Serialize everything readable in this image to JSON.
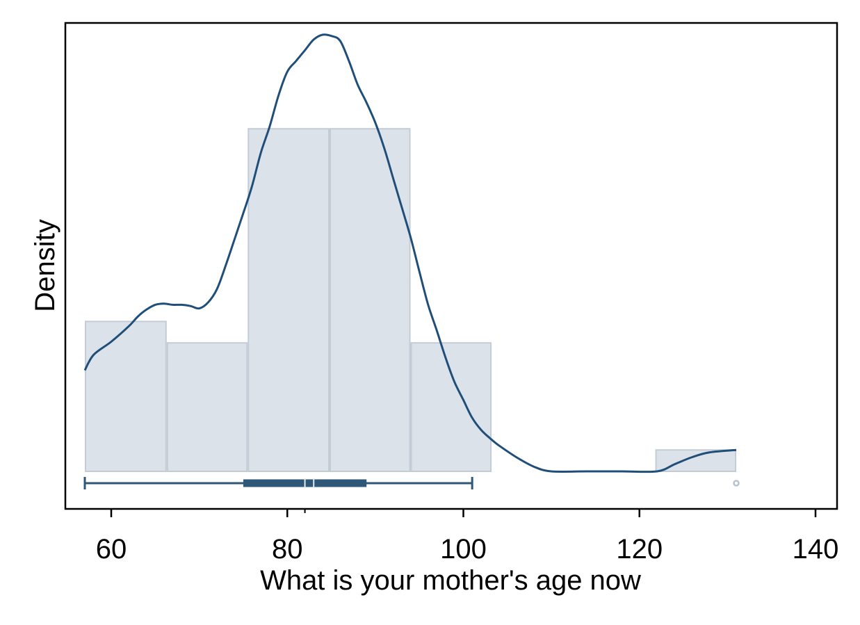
{
  "chart_data": {
    "type": "histogram",
    "title": "",
    "xlabel": "What is your mother's age now",
    "ylabel": "Density",
    "xlim": [
      55,
      141
    ],
    "xticks": [
      60,
      80,
      100,
      120,
      140
    ],
    "xtick_labels": [
      "60",
      "80",
      "100",
      "120",
      "140"
    ],
    "yticks": [],
    "grid": false,
    "legend": "none",
    "histogram": {
      "bins": [
        {
          "start": 57.0,
          "end": 66.3,
          "density": 0.0126
        },
        {
          "start": 66.3,
          "end": 75.5,
          "density": 0.0108
        },
        {
          "start": 75.5,
          "end": 84.8,
          "density": 0.0288
        },
        {
          "start": 84.8,
          "end": 94.0,
          "density": 0.0288
        },
        {
          "start": 94.0,
          "end": 103.2,
          "density": 0.0108
        },
        {
          "start": 103.2,
          "end": 112.5,
          "density": 0.0
        },
        {
          "start": 112.5,
          "end": 121.8,
          "density": 0.0
        },
        {
          "start": 121.8,
          "end": 131.0,
          "density": 0.0018
        }
      ],
      "ymax": 0.036
    },
    "kde": {
      "x": [
        57,
        58,
        60,
        62,
        63,
        64,
        65,
        66,
        67,
        68,
        69,
        70,
        71,
        72,
        73,
        74,
        75,
        76,
        77,
        78,
        79,
        80,
        81,
        82,
        83,
        84,
        85,
        86,
        87,
        88,
        89,
        90,
        91,
        92,
        93,
        94,
        95,
        96,
        97,
        98,
        99,
        100,
        101,
        102,
        103,
        104,
        106,
        108,
        110,
        114,
        118,
        122,
        124,
        126,
        128,
        131
      ],
      "y": [
        0.0085,
        0.0098,
        0.0109,
        0.0122,
        0.013,
        0.0136,
        0.014,
        0.0141,
        0.014,
        0.014,
        0.0139,
        0.0137,
        0.0142,
        0.0153,
        0.0173,
        0.0195,
        0.0217,
        0.024,
        0.0268,
        0.029,
        0.0316,
        0.0336,
        0.0345,
        0.0354,
        0.0363,
        0.0367,
        0.0366,
        0.0362,
        0.0345,
        0.0325,
        0.031,
        0.0293,
        0.0272,
        0.0247,
        0.0222,
        0.0197,
        0.0168,
        0.014,
        0.0118,
        0.0095,
        0.0075,
        0.006,
        0.0045,
        0.0035,
        0.0028,
        0.0022,
        0.0012,
        0.0004,
        0.0,
        0.0,
        0.0,
        0.0,
        0.0006,
        0.0012,
        0.0016,
        0.0018
      ],
      "color": "#1f4e79"
    },
    "boxplot": {
      "min": 57,
      "q1": 75,
      "median": 83,
      "mean": 82,
      "q3": 89,
      "max": 101,
      "outliers": [
        131
      ],
      "color": "#2f5778",
      "outlier_color": "#b7c3d0"
    },
    "colors": {
      "bar_fill": "#dce2ea",
      "bar_edge": "#c3ccd6",
      "line": "#1f4e79"
    }
  }
}
